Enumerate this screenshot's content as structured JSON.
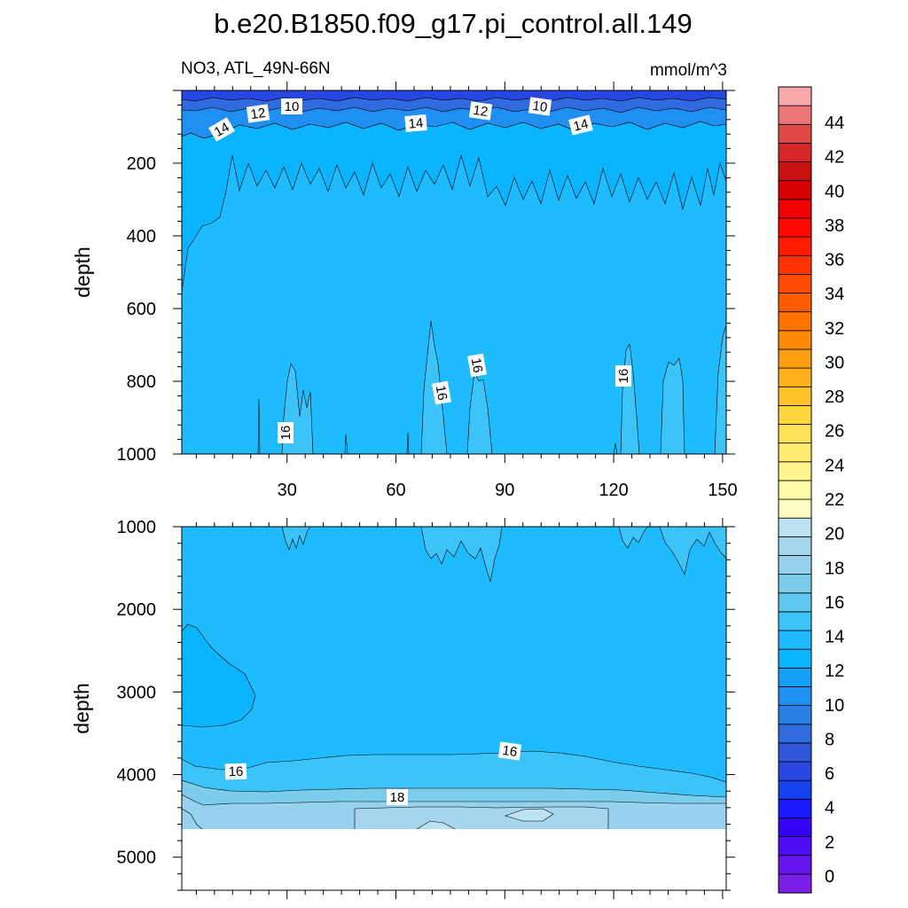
{
  "chart_data": {
    "type": "contour",
    "title": "b.e20.B1850.f09_g17.pi_control.all.149",
    "variable_label": "NO3, ATL_49N-66N",
    "units_label": "mmol/m^3",
    "colorbar": {
      "levels": [
        0,
        2,
        4,
        6,
        8,
        10,
        12,
        14,
        16,
        18,
        20,
        22,
        24,
        26,
        28,
        30,
        32,
        34,
        36,
        38,
        40,
        42,
        44
      ],
      "colors": [
        "#7a1ee8",
        "#6414ec",
        "#4d0cf0",
        "#3404f6",
        "#1a1aff",
        "#1440f0",
        "#2a46e0",
        "#3056d8",
        "#2f6bde",
        "#2a80e6",
        "#1f8ff2",
        "#14a0fa",
        "#0ab4ff",
        "#1ebcff",
        "#3cc4f8",
        "#5ec8f0",
        "#7ccceb",
        "#96d2ee",
        "#a6d6ee",
        "#bde2f2",
        "#fffdc2",
        "#fff9a8",
        "#fff490",
        "#ffec70",
        "#ffe356",
        "#ffd53c",
        "#ffc42a",
        "#ffb21c",
        "#ff9f10",
        "#ff8a08",
        "#ff7400",
        "#ff5c00",
        "#ff4a00",
        "#ff3400",
        "#ff1c00",
        "#ff0800",
        "#f00000",
        "#d80000",
        "#c81010",
        "#d42828",
        "#e04848",
        "#ec7676",
        "#f8a8a8"
      ],
      "tick_labels": [
        "0",
        "2",
        "4",
        "6",
        "8",
        "10",
        "12",
        "14",
        "16",
        "18",
        "20",
        "22",
        "24",
        "26",
        "28",
        "30",
        "32",
        "34",
        "36",
        "38",
        "40",
        "42",
        "44"
      ]
    },
    "panels": [
      {
        "name": "upper",
        "ylabel": "depth",
        "ylim": [
          1000,
          0
        ],
        "yticks": [
          "200",
          "400",
          "600",
          "800",
          "1000"
        ],
        "xlim": [
          1,
          151
        ],
        "xticks": [
          "30",
          "60",
          "90",
          "120",
          "150"
        ],
        "contour_labels": [
          "10",
          "12",
          "10",
          "12",
          "14",
          "14",
          "14",
          "16",
          "16",
          "16",
          "16"
        ],
        "fill_levels": [
          8,
          10,
          12,
          14,
          16
        ]
      },
      {
        "name": "lower",
        "ylabel": "depth",
        "ylim": [
          5400,
          1000
        ],
        "yticks": [
          "1000",
          "2000",
          "3000",
          "4000",
          "5000"
        ],
        "xlim": [
          1,
          151
        ],
        "contour_labels": [
          "16",
          "16",
          "18"
        ],
        "fill_levels": [
          14,
          16,
          18,
          20
        ],
        "missing_below_depth": 4620
      }
    ]
  }
}
